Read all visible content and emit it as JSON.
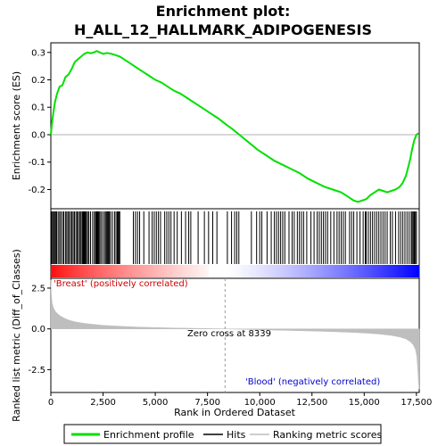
{
  "title_line1": "Enrichment plot:",
  "title_line2": "H_ALL_12_HALLMARK_ADIPOGENESIS",
  "colors": {
    "enrichment": "#00e000",
    "hits": "#000000",
    "ranking": "#bebebe",
    "positive": "#ff0000",
    "negative": "#0000ff",
    "zero_line": "#999999"
  },
  "chart_data": [
    {
      "type": "line",
      "name": "enrichment-profile",
      "ylabel": "Enrichment score (ES)",
      "xlim": [
        0,
        17635
      ],
      "ylim": [
        -0.27,
        0.335
      ],
      "yticks": [
        0.3,
        0.2,
        0.1,
        0.0,
        -0.1,
        -0.2
      ],
      "ytick_labels": [
        "0.3",
        "0.2",
        "0.1",
        "0.0",
        "-0.1",
        "-0.2"
      ],
      "x": [
        0,
        50,
        120,
        200,
        300,
        420,
        550,
        700,
        850,
        1000,
        1150,
        1300,
        1450,
        1600,
        1750,
        1900,
        2050,
        2200,
        2350,
        2500,
        2700,
        2900,
        3100,
        3300,
        3500,
        3800,
        4100,
        4400,
        4700,
        5000,
        5300,
        5600,
        5900,
        6200,
        6500,
        6800,
        7100,
        7400,
        7700,
        8000,
        8339,
        8700,
        9100,
        9500,
        9900,
        10300,
        10700,
        11100,
        11500,
        11900,
        12300,
        12700,
        13100,
        13500,
        13900,
        14200,
        14500,
        14700,
        14900,
        15100,
        15300,
        15500,
        15700,
        15900,
        16100,
        16300,
        16500,
        16700,
        16850,
        17000,
        17100,
        17200,
        17300,
        17400,
        17500,
        17600
      ],
      "y": [
        0.0,
        0.04,
        0.08,
        0.12,
        0.15,
        0.175,
        0.18,
        0.21,
        0.22,
        0.24,
        0.265,
        0.275,
        0.285,
        0.295,
        0.3,
        0.297,
        0.3,
        0.305,
        0.3,
        0.295,
        0.298,
        0.295,
        0.29,
        0.285,
        0.275,
        0.26,
        0.245,
        0.23,
        0.215,
        0.2,
        0.19,
        0.175,
        0.16,
        0.15,
        0.135,
        0.12,
        0.105,
        0.09,
        0.075,
        0.06,
        0.04,
        0.02,
        -0.005,
        -0.03,
        -0.055,
        -0.075,
        -0.095,
        -0.11,
        -0.125,
        -0.14,
        -0.16,
        -0.175,
        -0.19,
        -0.2,
        -0.21,
        -0.225,
        -0.24,
        -0.245,
        -0.24,
        -0.235,
        -0.22,
        -0.21,
        -0.2,
        -0.205,
        -0.21,
        -0.205,
        -0.2,
        -0.19,
        -0.175,
        -0.15,
        -0.12,
        -0.09,
        -0.05,
        -0.02,
        0.0,
        0.005
      ]
    },
    {
      "type": "hits",
      "name": "hits",
      "hit_ranks": [
        40,
        90,
        140,
        180,
        230,
        280,
        350,
        420,
        480,
        560,
        620,
        700,
        760,
        820,
        880,
        950,
        1010,
        1070,
        1130,
        1200,
        1260,
        1320,
        1380,
        1440,
        1500,
        1540,
        1580,
        1620,
        1660,
        1700,
        1760,
        1820,
        1900,
        2000,
        2080,
        2140,
        2180,
        2220,
        2260,
        2300,
        2350,
        2420,
        2500,
        2580,
        2640,
        2680,
        2720,
        2760,
        2800,
        2860,
        2950,
        3050,
        3120,
        3180,
        3220,
        3260,
        3300,
        3950,
        4050,
        4150,
        4250,
        4450,
        4700,
        4850,
        4950,
        5050,
        5150,
        5250,
        5450,
        5550,
        5650,
        5750,
        5900,
        6050,
        6250,
        6450,
        6600,
        6700,
        7050,
        7350,
        7550,
        7750,
        7950,
        8450,
        8650,
        8800,
        8900,
        9000,
        9600,
        9850,
        10000,
        10100,
        10350,
        10550,
        10700,
        10800,
        10900,
        11000,
        11100,
        11200,
        11400,
        11550,
        11650,
        11800,
        11900,
        12000,
        12100,
        12250,
        12450,
        12600,
        12750,
        12850,
        12950,
        13050,
        13150,
        13250,
        13400,
        13550,
        13700,
        13800,
        13900,
        14000,
        14100,
        14300,
        14400,
        14500,
        14650,
        14800,
        14950,
        15050,
        15100,
        15200,
        15300,
        15400,
        15500,
        15600,
        15700,
        15800,
        15900,
        16000,
        16100,
        16250,
        16350,
        16500,
        16650,
        16750,
        16850,
        16950,
        17050,
        17150,
        17250,
        17300,
        17350,
        17400,
        17450,
        17500
      ]
    },
    {
      "type": "area",
      "name": "ranking-metric",
      "ylabel": "Ranked list metric (Diff_of_Classes)",
      "xlabel": "Rank in Ordered Dataset",
      "xlim": [
        0,
        17635
      ],
      "ylim": [
        -3.9,
        3.1
      ],
      "yticks": [
        2.5,
        0.0,
        -2.5
      ],
      "ytick_labels": [
        "2.5",
        "0.0",
        "-2.5"
      ],
      "xticks": [
        0,
        2500,
        5000,
        7500,
        10000,
        12500,
        15000,
        17500
      ],
      "xtick_labels": [
        "0",
        "2,500",
        "5,000",
        "7,500",
        "10,000",
        "12,500",
        "15,000",
        "17,500"
      ],
      "x": [
        0,
        20,
        60,
        120,
        200,
        300,
        450,
        650,
        900,
        1200,
        1600,
        2000,
        2500,
        3000,
        3600,
        4200,
        5000,
        6000,
        7000,
        8339,
        9500,
        10500,
        11500,
        12500,
        13500,
        14500,
        15200,
        15800,
        16300,
        16700,
        17000,
        17200,
        17350,
        17450,
        17520,
        17570,
        17600,
        17635
      ],
      "y": [
        3.0,
        2.1,
        1.6,
        1.3,
        1.1,
        0.95,
        0.8,
        0.65,
        0.52,
        0.42,
        0.34,
        0.28,
        0.22,
        0.18,
        0.14,
        0.11,
        0.08,
        0.05,
        0.03,
        0.0,
        -0.04,
        -0.07,
        -0.1,
        -0.13,
        -0.17,
        -0.22,
        -0.27,
        -0.33,
        -0.4,
        -0.5,
        -0.62,
        -0.78,
        -0.98,
        -1.25,
        -1.7,
        -2.6,
        -3.3,
        -3.7
      ]
    }
  ],
  "ranking_labels": {
    "positive": "'Breast' (positively correlated)",
    "negative": "'Blood' (negatively correlated)",
    "zero_cross": "Zero cross at 8339",
    "zero_cross_rank": 8339
  },
  "legend": {
    "items": [
      {
        "label": "Enrichment profile",
        "color": "#00e000"
      },
      {
        "label": "Hits",
        "color": "#000000"
      },
      {
        "label": "Ranking metric scores",
        "color": "#bebebe"
      }
    ]
  }
}
